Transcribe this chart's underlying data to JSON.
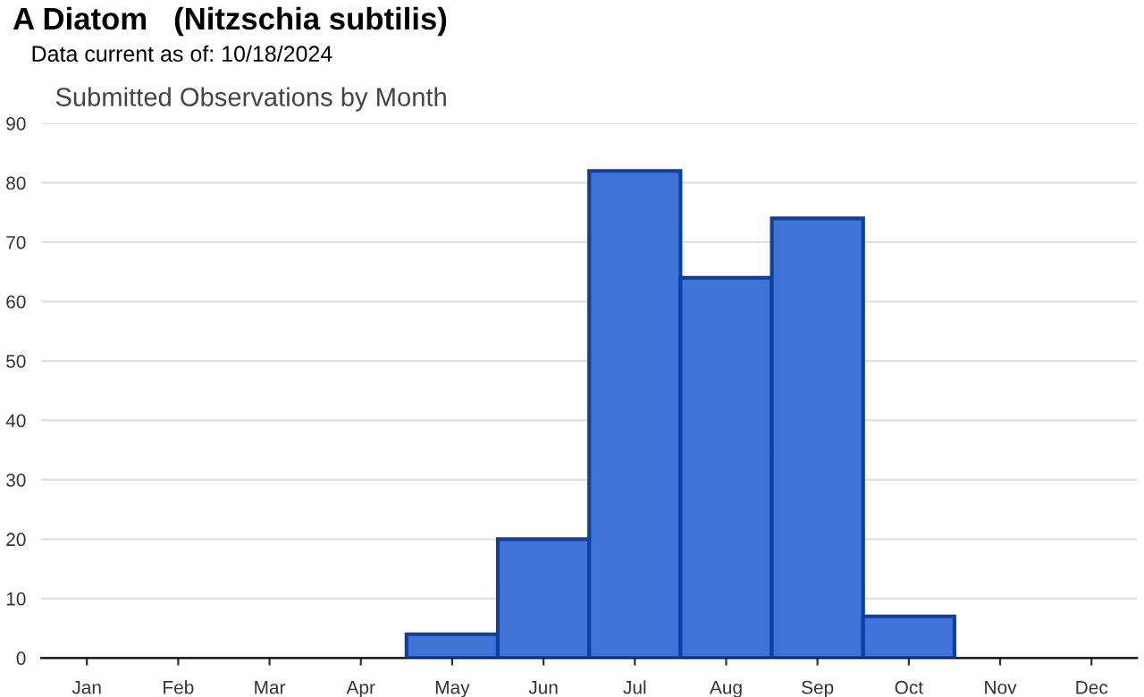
{
  "chart_data": {
    "type": "bar",
    "title": "A Diatom   (Nitzschia subtilis)",
    "subtitle": "Data current as of: 10/18/2024",
    "annotations": [
      "Submitted Observations by Month"
    ],
    "categories": [
      "Jan",
      "Feb",
      "Mar",
      "Apr",
      "May",
      "Jun",
      "Jul",
      "Aug",
      "Sep",
      "Oct",
      "Nov",
      "Dec"
    ],
    "values": [
      0,
      0,
      0,
      0,
      4,
      20,
      82,
      64,
      74,
      7,
      0,
      0
    ],
    "color": "#3f73d6",
    "ylim": [
      0,
      90
    ],
    "yticks": [
      0,
      10,
      20,
      30,
      40,
      50,
      60,
      70,
      80,
      90
    ],
    "grid": "y",
    "legend": false
  }
}
